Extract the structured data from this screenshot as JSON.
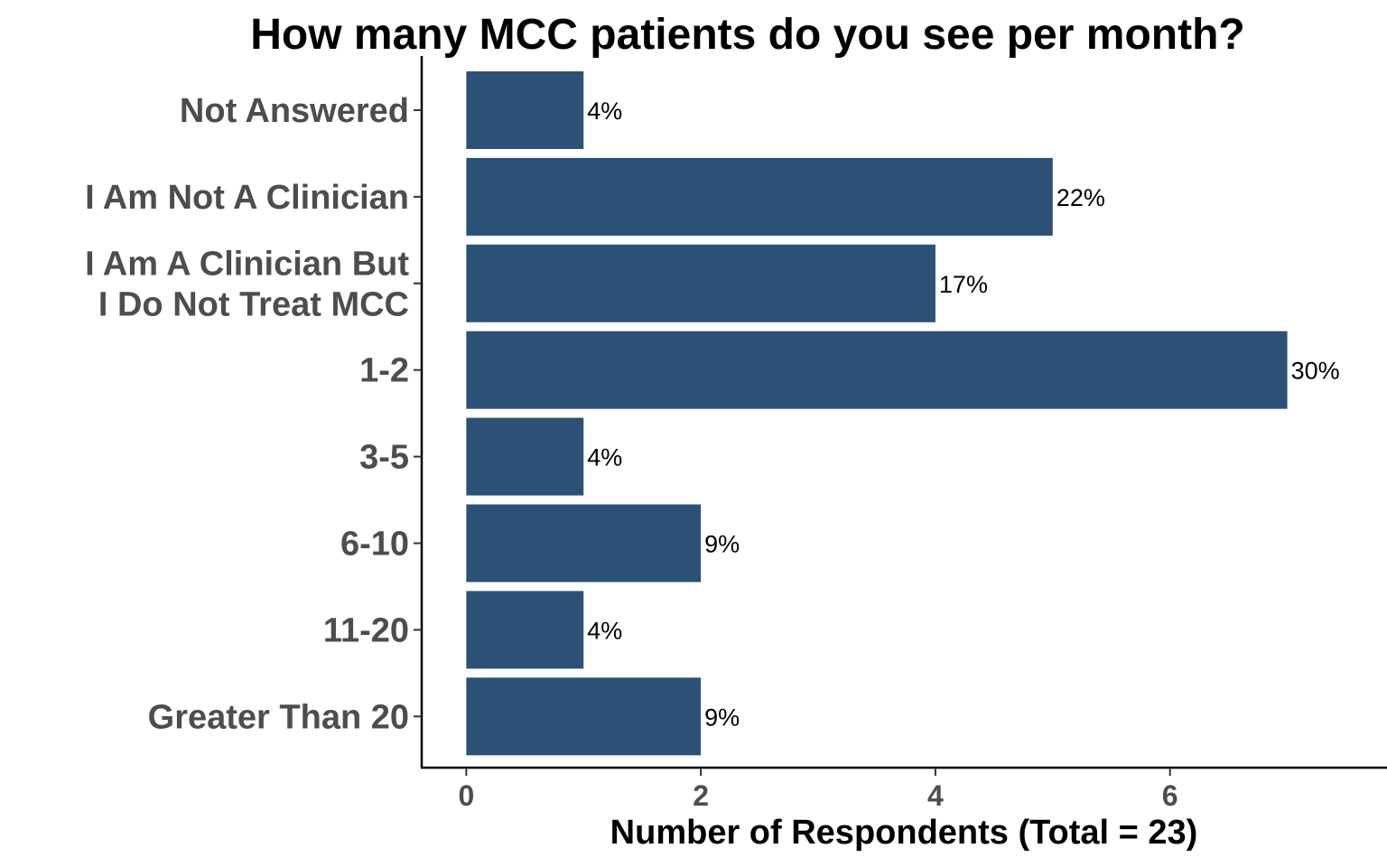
{
  "chart_data": {
    "type": "bar",
    "orientation": "horizontal",
    "title": "How many MCC patients do you see per month?",
    "xlabel": "Number of Respondents (Total = 23)",
    "ylabel": "",
    "categories": [
      "Not Answered",
      "I Am Not A Clinician",
      "I Am A Clinician But\nI Do Not Treat MCC",
      "1-2",
      "3-5",
      "6-10",
      "11-20",
      "Greater Than 20"
    ],
    "values": [
      1,
      5,
      4,
      7,
      1,
      2,
      1,
      2
    ],
    "data_labels": [
      "4%",
      "22%",
      "17%",
      "30%",
      "4%",
      "9%",
      "4%",
      "9%"
    ],
    "xlim": [
      -0.38,
      7.85
    ],
    "x_ticks": [
      0,
      2,
      4,
      6
    ],
    "x_tick_labels": [
      "0",
      "2",
      "4",
      "6"
    ],
    "grid": false,
    "legend": "none",
    "bar_color": "#2c5177"
  }
}
